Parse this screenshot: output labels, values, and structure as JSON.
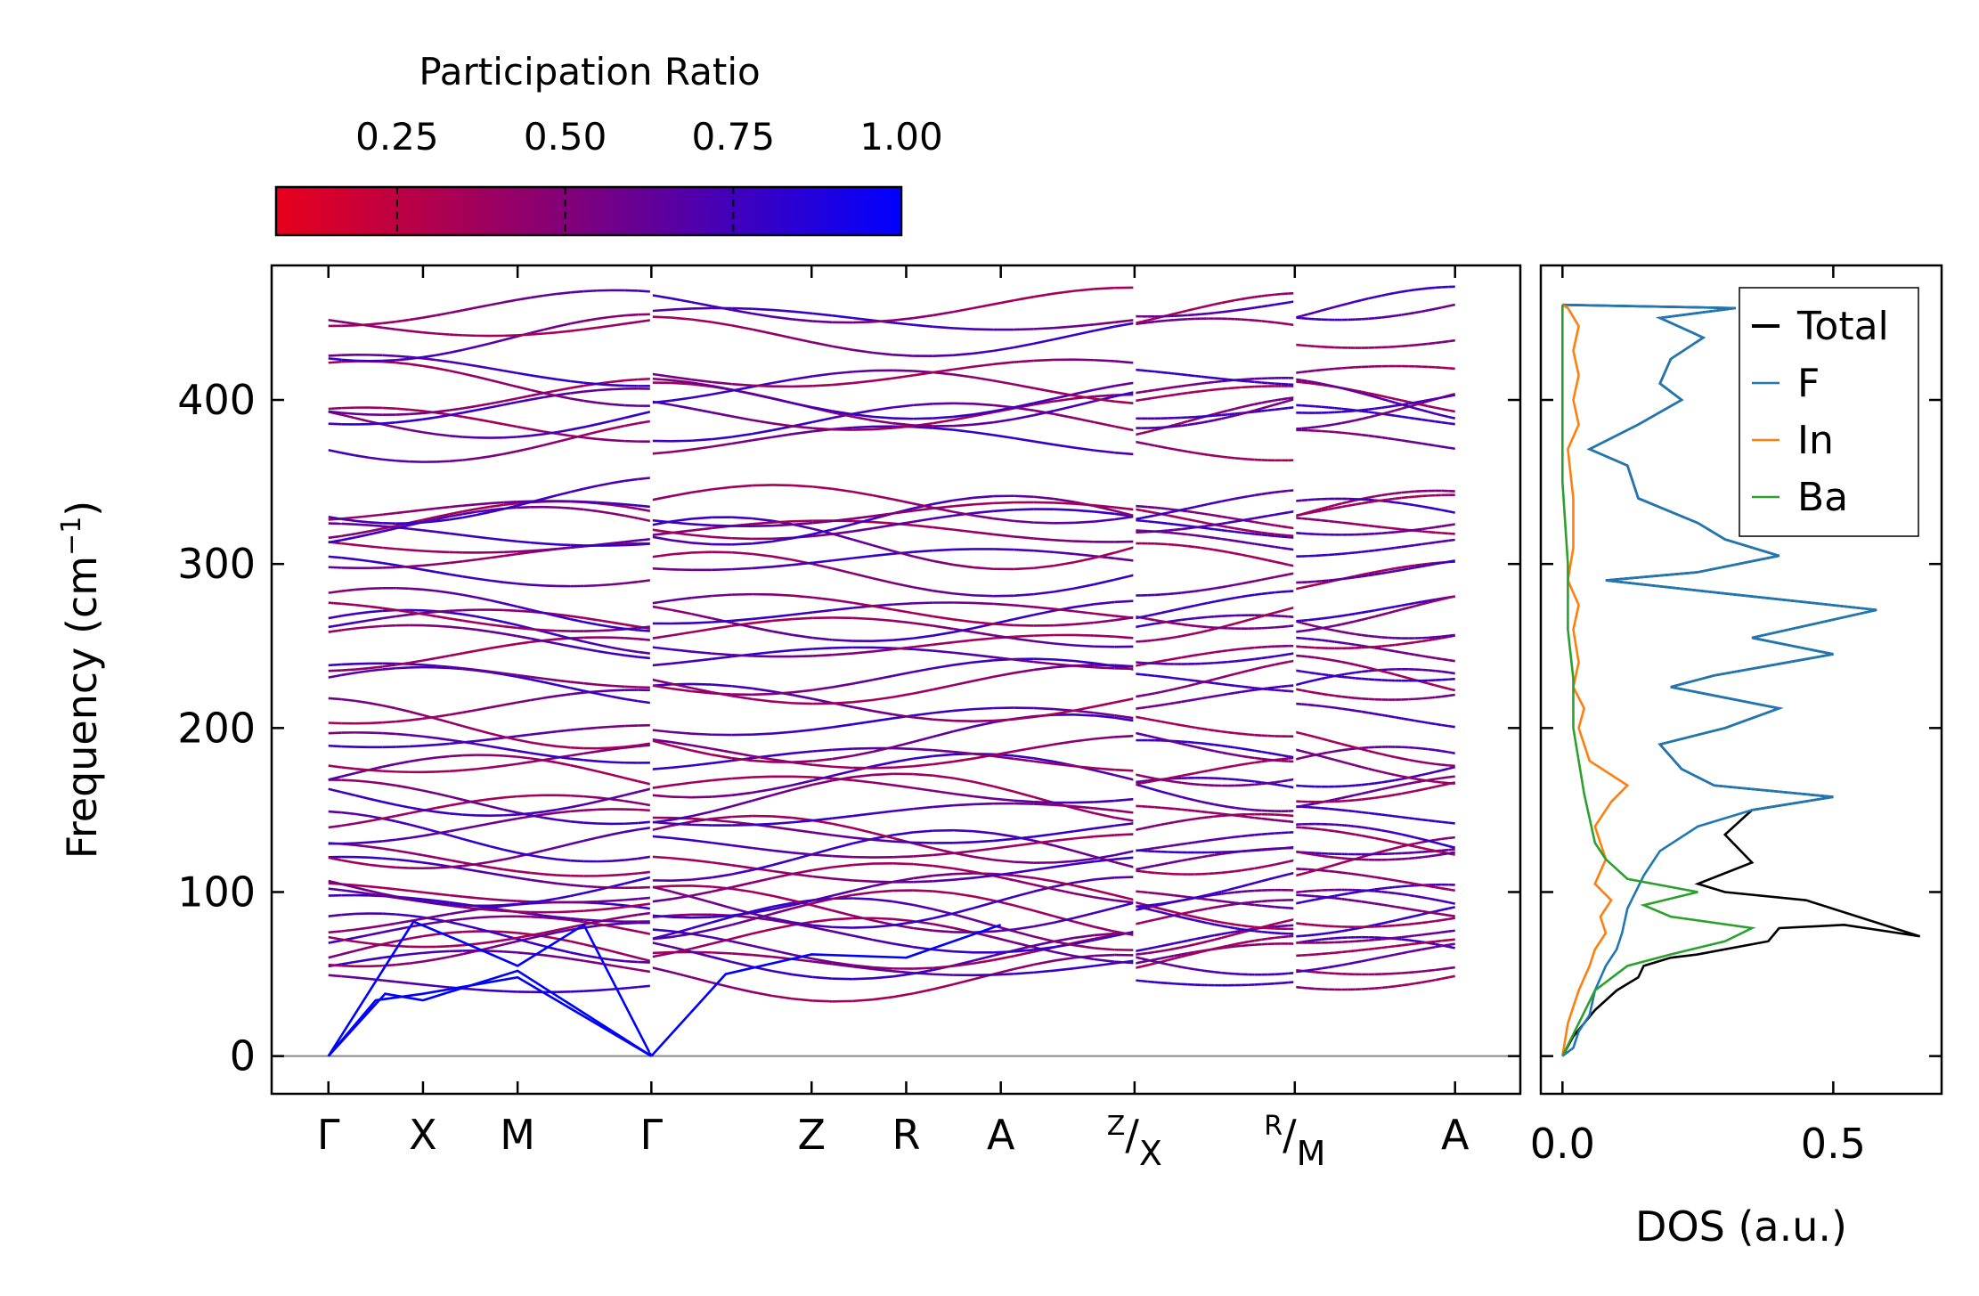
{
  "chart_data": [
    {
      "type": "line",
      "subtype": "phonon-band-structure",
      "ylabel_main": "Frequency (cm",
      "ylabel_sup": "−1",
      "ylabel_end": ")",
      "ylim": [
        -23,
        482
      ],
      "yticks": [
        0,
        100,
        200,
        300,
        400
      ],
      "ytick_labels": [
        "0",
        "100",
        "200",
        "300",
        "400"
      ],
      "kpoints": [
        {
          "main": "Γ",
          "pos": 0.0
        },
        {
          "main": "X",
          "pos": 0.5
        },
        {
          "main": "M",
          "pos": 1.0
        },
        {
          "main": "Γ",
          "pos": 1.707
        },
        {
          "main": "Z",
          "pos": 2.554
        },
        {
          "main": "R",
          "pos": 3.054
        },
        {
          "main": "A",
          "pos": 3.554
        },
        {
          "sup": "Z",
          "sub": "X",
          "pos": 4.261
        },
        {
          "sup": "R",
          "sub": "M",
          "pos": 5.108
        },
        {
          "main": "A",
          "pos": 5.955
        }
      ],
      "segment_breaks": [
        1.707,
        4.261,
        5.108
      ],
      "xlim": [
        -0.3,
        6.3
      ],
      "acoustic_branches": [
        {
          "x": [
            0,
            0.3,
            0.5,
            1.0,
            1.707
          ],
          "y": [
            0,
            38,
            34,
            52,
            0
          ]
        },
        {
          "x": [
            0,
            0.25,
            0.5,
            1.0,
            1.707
          ],
          "y": [
            0,
            34,
            38,
            48,
            0
          ]
        },
        {
          "x": [
            0,
            0.45,
            0.7,
            1.0,
            1.35,
            1.707
          ],
          "y": [
            0,
            82,
            70,
            55,
            80,
            0
          ]
        },
        {
          "x": [
            1.707,
            2.1,
            2.554,
            3.054,
            3.554
          ],
          "y": [
            0,
            50,
            62,
            60,
            80
          ]
        }
      ],
      "optical_band_frequencies_gamma": [
        45,
        55,
        62,
        68,
        72,
        74,
        78,
        84,
        90,
        96,
        100,
        105,
        112,
        120,
        128,
        134,
        140,
        148,
        155,
        160,
        170,
        182,
        188,
        195,
        203,
        213,
        225,
        232,
        245,
        252,
        258,
        263,
        268,
        272,
        296,
        305,
        313,
        318,
        322,
        326,
        332,
        339,
        376,
        385,
        390,
        396,
        402,
        410,
        418,
        438,
        447,
        456
      ],
      "colorbar": {
        "title": "Participation Ratio",
        "ticks": [
          0.25,
          0.5,
          0.75,
          1.0
        ],
        "tick_labels": [
          "0.25",
          "0.50",
          "0.75",
          "1.00"
        ],
        "range": [
          0.07,
          1.0
        ],
        "color_low": "#e8001c",
        "color_mid": "#7a0080",
        "color_high": "#0000ff"
      }
    },
    {
      "type": "line",
      "subtype": "density-of-states",
      "xlabel": "DOS (a.u.)",
      "xticks": [
        0.0,
        0.5
      ],
      "xtick_labels": [
        "0.0",
        "0.5"
      ],
      "xlim": [
        -0.04,
        0.7
      ],
      "ylim": [
        -23,
        482
      ],
      "series": [
        {
          "name": "Total",
          "color": "#000000",
          "values": [
            [
              0,
              0
            ],
            [
              0.02,
              12
            ],
            [
              0.04,
              20
            ],
            [
              0.06,
              28
            ],
            [
              0.1,
              40
            ],
            [
              0.14,
              48
            ],
            [
              0.15,
              55
            ],
            [
              0.2,
              60
            ],
            [
              0.25,
              62
            ],
            [
              0.38,
              70
            ],
            [
              0.4,
              78
            ],
            [
              0.52,
              80
            ],
            [
              0.62,
              75
            ],
            [
              0.66,
              73
            ],
            [
              0.45,
              95
            ],
            [
              0.3,
              100
            ],
            [
              0.25,
              105
            ],
            [
              0.35,
              118
            ],
            [
              0.3,
              135
            ],
            [
              0.35,
              150
            ],
            [
              0.5,
              158
            ],
            [
              0.28,
              165
            ],
            [
              0.22,
              175
            ],
            [
              0.18,
              190
            ],
            [
              0.3,
              200
            ],
            [
              0.4,
              212
            ],
            [
              0.2,
              225
            ],
            [
              0.28,
              232
            ],
            [
              0.5,
              245
            ],
            [
              0.35,
              255
            ],
            [
              0.58,
              272
            ],
            [
              0.3,
              282
            ],
            [
              0.08,
              290
            ],
            [
              0.25,
              295
            ],
            [
              0.4,
              305
            ],
            [
              0.3,
              315
            ],
            [
              0.25,
              325
            ],
            [
              0.14,
              340
            ],
            [
              0.12,
              360
            ],
            [
              0.05,
              370
            ],
            [
              0.14,
              385
            ],
            [
              0.22,
              400
            ],
            [
              0.18,
              410
            ],
            [
              0.2,
              425
            ],
            [
              0.26,
              438
            ],
            [
              0.18,
              450
            ],
            [
              0.32,
              456
            ],
            [
              0.0,
              458
            ]
          ]
        },
        {
          "name": "F",
          "color": "#1f77b4",
          "values": [
            [
              0,
              0
            ],
            [
              0.02,
              5
            ],
            [
              0.03,
              15
            ],
            [
              0.05,
              25
            ],
            [
              0.06,
              40
            ],
            [
              0.08,
              55
            ],
            [
              0.1,
              65
            ],
            [
              0.11,
              75
            ],
            [
              0.12,
              90
            ],
            [
              0.15,
              110
            ],
            [
              0.18,
              125
            ],
            [
              0.25,
              140
            ],
            [
              0.35,
              150
            ],
            [
              0.5,
              158
            ],
            [
              0.28,
              165
            ],
            [
              0.22,
              175
            ],
            [
              0.18,
              190
            ],
            [
              0.3,
              200
            ],
            [
              0.4,
              212
            ],
            [
              0.2,
              225
            ],
            [
              0.28,
              232
            ],
            [
              0.5,
              245
            ],
            [
              0.35,
              255
            ],
            [
              0.58,
              272
            ],
            [
              0.3,
              282
            ],
            [
              0.08,
              290
            ],
            [
              0.25,
              295
            ],
            [
              0.4,
              305
            ],
            [
              0.3,
              315
            ],
            [
              0.25,
              325
            ],
            [
              0.14,
              340
            ],
            [
              0.12,
              360
            ],
            [
              0.05,
              370
            ],
            [
              0.14,
              385
            ],
            [
              0.22,
              400
            ],
            [
              0.18,
              410
            ],
            [
              0.2,
              425
            ],
            [
              0.26,
              438
            ],
            [
              0.18,
              450
            ],
            [
              0.32,
              456
            ],
            [
              0.0,
              458
            ]
          ]
        },
        {
          "name": "In",
          "color": "#ff7f0e",
          "values": [
            [
              0,
              0
            ],
            [
              0.01,
              20
            ],
            [
              0.03,
              40
            ],
            [
              0.05,
              55
            ],
            [
              0.06,
              65
            ],
            [
              0.08,
              75
            ],
            [
              0.07,
              85
            ],
            [
              0.09,
              95
            ],
            [
              0.06,
              105
            ],
            [
              0.08,
              120
            ],
            [
              0.06,
              140
            ],
            [
              0.09,
              155
            ],
            [
              0.12,
              165
            ],
            [
              0.05,
              180
            ],
            [
              0.03,
              200
            ],
            [
              0.04,
              212
            ],
            [
              0.02,
              225
            ],
            [
              0.03,
              240
            ],
            [
              0.02,
              260
            ],
            [
              0.03,
              275
            ],
            [
              0.01,
              290
            ],
            [
              0.02,
              310
            ],
            [
              0.02,
              340
            ],
            [
              0.01,
              370
            ],
            [
              0.03,
              385
            ],
            [
              0.02,
              400
            ],
            [
              0.03,
              415
            ],
            [
              0.02,
              430
            ],
            [
              0.03,
              445
            ],
            [
              0.01,
              456
            ],
            [
              0.0,
              458
            ]
          ]
        },
        {
          "name": "Ba",
          "color": "#2ca02c",
          "values": [
            [
              0,
              0
            ],
            [
              0.03,
              20
            ],
            [
              0.06,
              40
            ],
            [
              0.12,
              55
            ],
            [
              0.2,
              62
            ],
            [
              0.3,
              70
            ],
            [
              0.35,
              78
            ],
            [
              0.2,
              85
            ],
            [
              0.15,
              92
            ],
            [
              0.25,
              100
            ],
            [
              0.12,
              108
            ],
            [
              0.08,
              120
            ],
            [
              0.06,
              130
            ],
            [
              0.05,
              145
            ],
            [
              0.04,
              160
            ],
            [
              0.03,
              180
            ],
            [
              0.02,
              200
            ],
            [
              0.02,
              230
            ],
            [
              0.01,
              260
            ],
            [
              0.01,
              300
            ],
            [
              0.0,
              350
            ],
            [
              0.0,
              458
            ]
          ]
        }
      ],
      "legend_location": "top-right"
    }
  ]
}
